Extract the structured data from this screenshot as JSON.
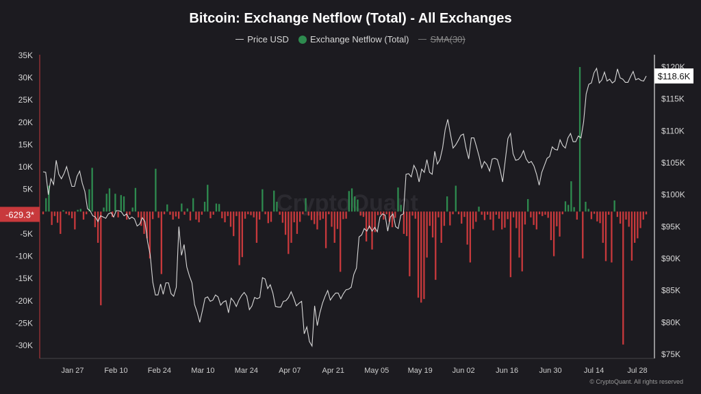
{
  "chart_data": {
    "type": "bar",
    "title": "Bitcoin: Exchange Netflow (Total) - All Exchanges",
    "legend": [
      "Price USD",
      "Exchange Netflow (Total)",
      "SMA(30)"
    ],
    "legend_placement": "top-center",
    "y_left": {
      "ticks": [
        "35K",
        "30K",
        "25K",
        "20K",
        "15K",
        "10K",
        "5K",
        "-5K",
        "-10K",
        "-15K",
        "-20K",
        "-25K",
        "-30K"
      ],
      "tick_values": [
        35000,
        30000,
        25000,
        20000,
        15000,
        10000,
        5000,
        -5000,
        -10000,
        -15000,
        -20000,
        -25000,
        -30000
      ],
      "range": [
        -32500,
        35000
      ]
    },
    "y_right": {
      "ticks": [
        "$120K",
        "$115K",
        "$110K",
        "$105K",
        "$100K",
        "$95K",
        "$90K",
        "$85K",
        "$80K",
        "$75K"
      ],
      "tick_values": [
        120000,
        115000,
        110000,
        105000,
        100000,
        95000,
        90000,
        85000,
        80000,
        75000
      ],
      "range": [
        75000,
        120000
      ]
    },
    "x_ticks": [
      "Jan 27",
      "Feb 10",
      "Feb 24",
      "Mar 10",
      "Mar 24",
      "Apr 07",
      "Apr 21",
      "May 05",
      "May 19",
      "Jun 02",
      "Jun 16",
      "Jun 30",
      "Jul 14",
      "Jul 28"
    ],
    "grid": false,
    "current_netflow_label": "-629.3*",
    "current_netflow_value": -629.3,
    "current_price_label": "$118.6K",
    "current_price_value": 118600,
    "series": [
      {
        "name": "Exchange Netflow (Total)",
        "unit": "BTC",
        "color_positive": "#2e8b4f",
        "color_negative": "#c8393c",
        "start_date": "Jan 20",
        "values": [
          -600,
          3000,
          5800,
          -3000,
          -1000,
          -2500,
          -5000,
          300,
          -500,
          -800,
          -1500,
          -4000,
          400,
          600,
          -1800,
          -600,
          5000,
          9800,
          -3500,
          -7000,
          -21000,
          900,
          4000,
          5200,
          -1200,
          4000,
          -1300,
          3700,
          3400,
          -1800,
          -700,
          900,
          5300,
          -1300,
          -3200,
          -5000,
          -6000,
          -10500,
          -1700,
          9600,
          -1400,
          -14000,
          -600,
          1600,
          -700,
          -1800,
          -1100,
          -1600,
          1800,
          -700,
          700,
          -2000,
          3000,
          -1800,
          -2400,
          -700,
          2200,
          6000,
          -1500,
          -700,
          1800,
          1700,
          -1500,
          -2400,
          -1000,
          -3400,
          -5500,
          -1000,
          -12000,
          -10200,
          -1600,
          -600,
          -800,
          -1300,
          -7000,
          -1800,
          5000,
          -600,
          -2600,
          -2300,
          4700,
          2200,
          -700,
          -2500,
          -5200,
          -9500,
          -7000,
          -2400,
          -5000,
          -2300,
          -600,
          3000,
          -900,
          -1900,
          -2800,
          -4000,
          -1900,
          -1600,
          -8200,
          -600,
          -3400,
          -7000,
          -3900,
          -13500,
          -1700,
          -1600,
          4600,
          5200,
          3400,
          2700,
          -900,
          -1200,
          -6700,
          -3800,
          -8500,
          -4600,
          -800,
          -700,
          -1800,
          -600,
          -2300,
          -3500,
          -1400,
          5400,
          1500,
          -5000,
          -5500,
          -14500,
          -900,
          -1600,
          -19300,
          -20400,
          -19600,
          -10300,
          -3200,
          -5800,
          -15300,
          -1300,
          -7000,
          -3200,
          3400,
          -3100,
          -600,
          5800,
          -600,
          -2700,
          -1200,
          -7400,
          -11400,
          -3900,
          -2300,
          1100,
          -700,
          -1900,
          -700,
          -1800,
          -4200,
          -700,
          -1600,
          -4000,
          -3600,
          -1700,
          -14700,
          -1300,
          -3700,
          -10300,
          -13400,
          -2900,
          2800,
          -1300,
          -3000,
          -4000,
          -600,
          -1000,
          -700,
          -1400,
          -6400,
          -10000,
          -3300,
          -5600,
          -600,
          2300,
          1500,
          6800,
          1000,
          -1800,
          32400,
          -10500,
          2200,
          600,
          -1700,
          -500,
          -2200,
          -2600,
          -7000,
          -11100,
          -700,
          -11400,
          2500,
          -1200,
          -2700,
          -29800,
          -1800,
          -3400,
          -11000,
          -7000,
          -6000,
          -3700,
          -1800,
          -629.3
        ]
      },
      {
        "name": "Price USD",
        "unit": "USD",
        "color": "#d9d9d9",
        "start_date": "Jan 20",
        "values": [
          103600,
          103500,
          100000,
          102500,
          101600,
          105400,
          103200,
          102500,
          103300,
          104400,
          102800,
          101300,
          101300,
          102900,
          103700,
          101800,
          100500,
          97800,
          97500,
          96700,
          96500,
          95800,
          96700,
          96500,
          96300,
          97000,
          97200,
          96500,
          97500,
          97500,
          97300,
          96700,
          97000,
          96200,
          96500,
          96200,
          95100,
          95400,
          96400,
          95800,
          92600,
          90600,
          86300,
          84300,
          84300,
          86000,
          84400,
          86200,
          86200,
          84500,
          84100,
          85500,
          95000,
          90500,
          92200,
          88700,
          87300,
          86200,
          82800,
          81600,
          80000,
          81800,
          83800,
          84000,
          83300,
          83500,
          84300,
          84000,
          82700,
          83200,
          83400,
          81500,
          83800,
          83300,
          82500,
          83500,
          84200,
          84700,
          84100,
          82000,
          82600,
          83900,
          83700,
          83900,
          87000,
          86800,
          85300,
          85900,
          84600,
          82500,
          82400,
          82400,
          83300,
          83400,
          83900,
          84800,
          83800,
          82600,
          83000,
          83300,
          78200,
          79300,
          77000,
          76300,
          82600,
          79500,
          81500,
          83000,
          84100,
          85000,
          83500,
          84100,
          84600,
          84600,
          83700,
          84500,
          85100,
          85200,
          85500,
          87500,
          88500,
          93400,
          93700,
          94700,
          94300,
          95100,
          94300,
          94900,
          94200,
          96500,
          97000,
          96800,
          94300,
          96500,
          97000,
          95000,
          94700,
          96800,
          97000,
          103200,
          103300,
          102800,
          104600,
          103800,
          102000,
          104000,
          103500,
          105500,
          103500,
          103200,
          106800,
          104800,
          105500,
          107300,
          110200,
          111800,
          109500,
          107300,
          107800,
          108500,
          109300,
          109500,
          107300,
          105600,
          108900,
          108900,
          107500,
          106000,
          104200,
          105200,
          104700,
          103700,
          105600,
          105700,
          105500,
          104000,
          102000,
          105400,
          108800,
          109600,
          106400,
          105400,
          105500,
          106000,
          106900,
          105600,
          105000,
          105200,
          104500,
          103200,
          101500,
          103500,
          104600,
          105700,
          106000,
          107500,
          107100,
          107000,
          108600,
          107700,
          107300,
          108900,
          109600,
          108300,
          108300,
          109200,
          108900,
          111400,
          115800,
          117300,
          117500,
          119100,
          119800,
          117500,
          118000,
          119200,
          117800,
          118100,
          117500,
          117800,
          119700,
          118300,
          118100,
          117600,
          117600,
          118500,
          119300,
          118000,
          118200,
          117900,
          117800,
          118600
        ]
      },
      {
        "name": "SMA(30)",
        "hidden": true,
        "values": []
      }
    ]
  },
  "current_labels": {
    "netflow": "-629.3*",
    "price": "$118.6K"
  },
  "credit": "© CryptoQuant. All rights reserved",
  "watermark": "CryptoQuant",
  "legend_labels": {
    "price": "Price USD",
    "netflow": "Exchange Netflow (Total)",
    "sma": "SMA(30)"
  },
  "title": "Bitcoin: Exchange Netflow (Total) - All Exchanges"
}
